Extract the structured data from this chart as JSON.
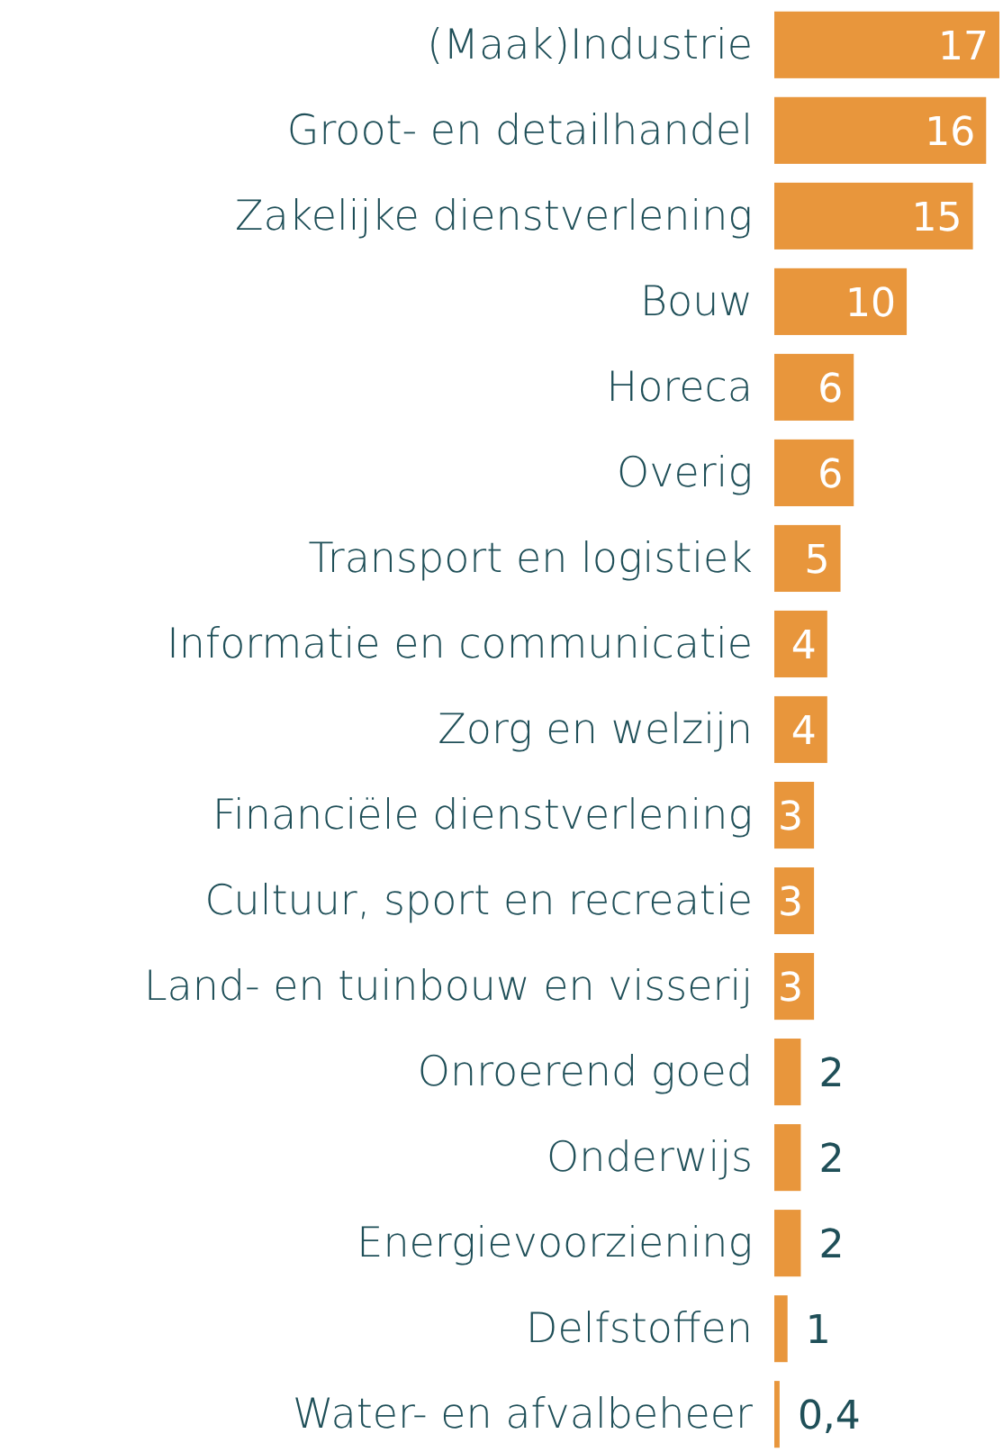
{
  "chart_data": {
    "type": "bar",
    "orientation": "horizontal",
    "categories": [
      "(Maak)Industrie",
      "Groot- en detailhandel",
      "Zakelijke dienstverlening",
      "Bouw",
      "Horeca",
      "Overig",
      "Transport en logistiek",
      "Informatie en communicatie",
      "Zorg en welzijn",
      "Financiële dienstverlening",
      "Cultuur, sport en recreatie",
      "Land- en tuinbouw en visserij",
      "Onroerend goed",
      "Onderwijs",
      "Energievoorziening",
      "Delfstoffen",
      "Water- en afvalbeheer"
    ],
    "values": [
      17,
      16,
      15,
      10,
      6,
      6,
      5,
      4,
      4,
      3,
      3,
      3,
      2,
      2,
      2,
      1,
      0.4
    ],
    "value_labels": [
      "17",
      "16",
      "15",
      "10",
      "6",
      "6",
      "5",
      "4",
      "4",
      "3",
      "3",
      "3",
      "2",
      "2",
      "2",
      "1",
      "0,4"
    ],
    "color": "#e8963c"
  }
}
